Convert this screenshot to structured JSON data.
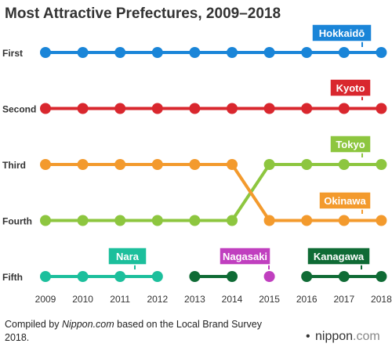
{
  "chart_data": {
    "type": "line",
    "title": "Most Attractive Prefectures, 2009–2018",
    "x": [
      2009,
      2010,
      2011,
      2012,
      2013,
      2014,
      2015,
      2016,
      2017,
      2018
    ],
    "ranks": [
      "First",
      "Second",
      "Third",
      "Fourth",
      "Fifth"
    ],
    "series": [
      {
        "name": "Hokkaidō",
        "color": "#1a85d8",
        "ranks": [
          1,
          1,
          1,
          1,
          1,
          1,
          1,
          1,
          1,
          1
        ]
      },
      {
        "name": "Kyoto",
        "color": "#d9272e",
        "ranks": [
          2,
          2,
          2,
          2,
          2,
          2,
          2,
          2,
          2,
          2
        ]
      },
      {
        "name": "Tokyo",
        "color": "#8dc63f",
        "ranks": [
          4,
          4,
          4,
          4,
          4,
          4,
          3,
          3,
          3,
          3
        ]
      },
      {
        "name": "Okinawa",
        "color": "#f39a2d",
        "ranks": [
          3,
          3,
          3,
          3,
          3,
          3,
          4,
          4,
          4,
          4
        ]
      },
      {
        "name": "Nara",
        "color": "#1cbf9c",
        "ranks": [
          5,
          5,
          5,
          5,
          null,
          null,
          null,
          null,
          null,
          null
        ]
      },
      {
        "name": "Nagasaki",
        "color": "#c03fbf",
        "ranks": [
          null,
          null,
          null,
          null,
          null,
          null,
          5,
          null,
          null,
          null
        ]
      },
      {
        "name": "Kanagawa",
        "color": "#0f6b35",
        "ranks": [
          null,
          null,
          null,
          null,
          5,
          5,
          null,
          5,
          5,
          5
        ]
      }
    ]
  },
  "footer": {
    "source_prefix": "Compiled by ",
    "source_site": "Nippon.com",
    "source_line1_rest": " based on the Local Brand Survey",
    "source_line2": "2018.",
    "brand_dot": "•",
    "brand_name": "nippon",
    "brand_suffix": ".com"
  }
}
